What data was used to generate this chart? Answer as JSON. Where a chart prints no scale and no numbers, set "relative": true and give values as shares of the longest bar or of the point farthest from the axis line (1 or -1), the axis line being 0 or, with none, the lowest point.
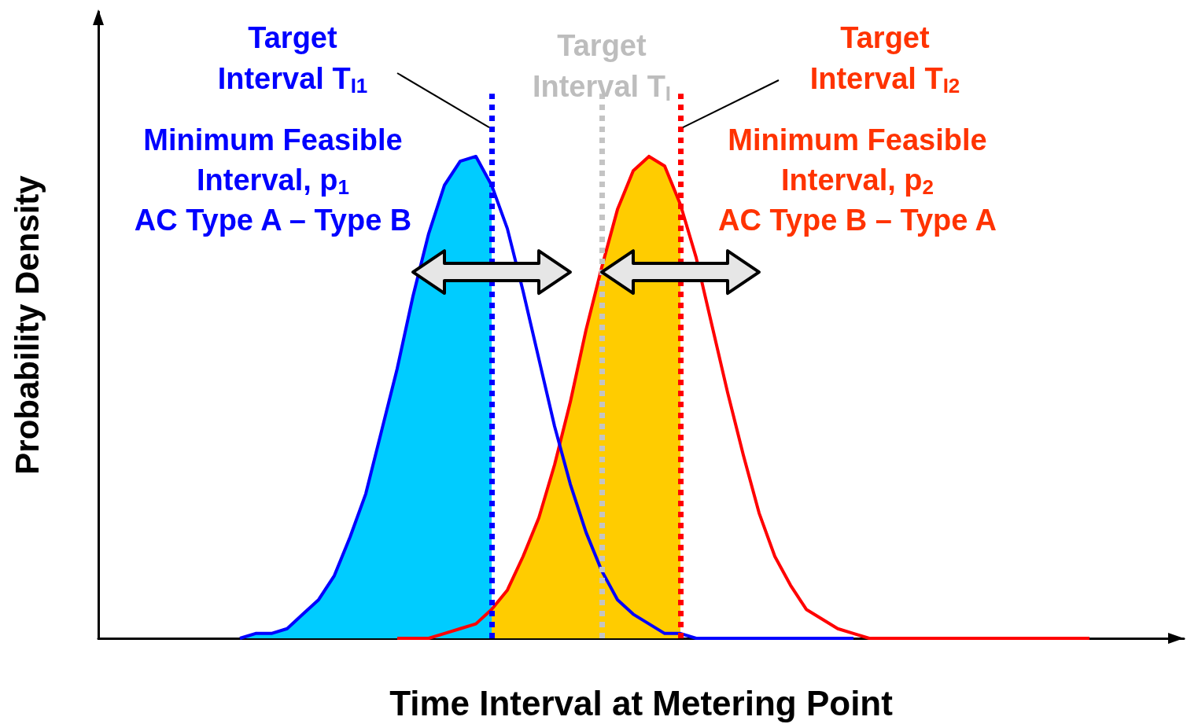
{
  "chart_data": {
    "type": "line",
    "relative": true,
    "marker": "none",
    "tick_labels": false,
    "xlabel": "Time Interval at Metering Point",
    "ylabel": "Probability Density",
    "categories": [
      null,
      null,
      null,
      null,
      null,
      null,
      null,
      null,
      null,
      null,
      null,
      null,
      null,
      null,
      null,
      null,
      null,
      null,
      null,
      null,
      null,
      null,
      null,
      null,
      null,
      null,
      null,
      null,
      null,
      null,
      null,
      null,
      null,
      null,
      null,
      null,
      null,
      null,
      null,
      null,
      null,
      null,
      null,
      null,
      null,
      null,
      null,
      null,
      null,
      null,
      null,
      null,
      null,
      null,
      null,
      null,
      null,
      null,
      null,
      null,
      null,
      null,
      null,
      null,
      null,
      null,
      null,
      null,
      null,
      null
    ],
    "series": [
      {
        "type": "area",
        "color": "#ffcc00",
        "values": [
          null,
          null,
          null,
          null,
          null,
          null,
          null,
          null,
          null,
          null,
          null,
          null,
          null,
          null,
          null,
          null,
          null,
          null,
          null,
          null,
          null,
          null,
          null,
          null,
          null,
          0.06,
          0.1,
          0.17,
          0.25,
          0.36,
          0.49,
          0.64,
          0.77,
          0.89,
          0.97,
          1,
          0.98,
          0.9,
          null,
          null,
          null,
          null,
          null,
          null,
          null,
          null,
          null,
          null,
          null,
          null,
          null,
          null,
          null,
          null,
          null,
          null,
          null,
          null,
          null,
          null,
          null,
          null,
          null,
          null,
          null,
          null,
          null,
          null,
          null,
          null
        ]
      },
      {
        "type": "area",
        "color": "#00ccff",
        "values": [
          null,
          null,
          null,
          null,
          null,
          null,
          null,
          null,
          null,
          0,
          0.01,
          0.01,
          0.02,
          0.05,
          0.08,
          0.13,
          0.21,
          0.3,
          0.43,
          0.56,
          0.71,
          0.84,
          0.94,
          0.99,
          1,
          0.94,
          null,
          null,
          null,
          null,
          null,
          null,
          null,
          null,
          null,
          null,
          null,
          null,
          null,
          null,
          null,
          null,
          null,
          null,
          null,
          null,
          null,
          null,
          null,
          null,
          null,
          null,
          null,
          null,
          null,
          null,
          null,
          null,
          null,
          null,
          null,
          null,
          null,
          null,
          null,
          null,
          null,
          null,
          null,
          null
        ]
      },
      {
        "color": "#ff0000",
        "values": [
          null,
          null,
          null,
          null,
          null,
          null,
          null,
          null,
          null,
          null,
          null,
          null,
          null,
          null,
          null,
          null,
          null,
          null,
          null,
          0,
          0,
          0,
          0.01,
          0.02,
          0.03,
          0.06,
          0.1,
          0.17,
          0.25,
          0.36,
          0.49,
          0.64,
          0.77,
          0.89,
          0.97,
          1,
          0.98,
          0.9,
          0.79,
          0.65,
          0.51,
          0.38,
          0.26,
          0.17,
          0.11,
          0.06,
          0.04,
          0.02,
          0.01,
          0,
          0,
          0,
          0,
          0,
          0,
          0,
          0,
          0,
          0,
          0,
          0,
          0,
          0,
          0,
          null,
          null,
          null,
          null,
          null,
          null
        ]
      },
      {
        "color": "#0000ff",
        "values": [
          null,
          null,
          null,
          null,
          null,
          null,
          null,
          null,
          null,
          0,
          0.01,
          0.01,
          0.02,
          0.05,
          0.08,
          0.13,
          0.21,
          0.3,
          0.43,
          0.56,
          0.71,
          0.84,
          0.94,
          0.99,
          1,
          0.94,
          0.85,
          0.72,
          0.58,
          0.44,
          0.32,
          0.22,
          0.14,
          0.08,
          0.05,
          0.03,
          0.01,
          0.01,
          0,
          0,
          0,
          0,
          0,
          0,
          0,
          0,
          0,
          0,
          0,
          null,
          null,
          null,
          null,
          null,
          null,
          null,
          null,
          null,
          null,
          null,
          null,
          null,
          null,
          null,
          null,
          null,
          null,
          null,
          null,
          null
        ]
      }
    ],
    "annotations": [
      "Target\nInterval T$_{I1}$",
      "Target\nInterval T$_{I}$",
      "Target\nInterval T$_{I2}$",
      "Minimum Feasible\nInterval, p$_{1}$\nAC Type A – Type B",
      "Minimum Feasible\nInterval, p$_{2}$\nAC Type B – Type A"
    ]
  }
}
